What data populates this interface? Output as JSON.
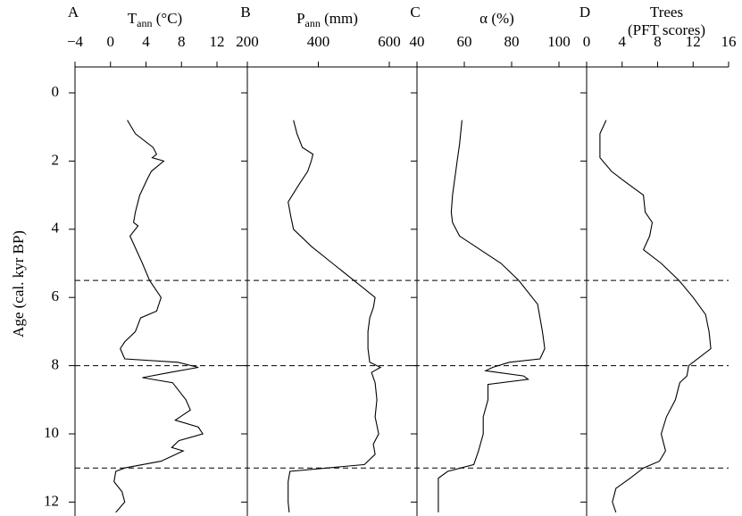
{
  "shared_axis": {
    "y_label": "Age (cal. kyr BP)",
    "ylim": [
      -0.76,
      12.4
    ],
    "y_inverted": true,
    "yticks": [
      0,
      2,
      4,
      6,
      8,
      10,
      12
    ],
    "reference_lines": [
      5.5,
      8,
      11
    ]
  },
  "chart_data": [
    {
      "type": "line",
      "panel": "A",
      "x_label": [
        "T",
        "ann",
        " (°C)"
      ],
      "x_label_sub": 1,
      "xlim": [
        -4,
        12
      ],
      "xticks": [
        {
          "value": -4,
          "label": "−4"
        },
        0,
        4,
        8,
        12
      ],
      "color": "#000000",
      "y": [
        0.8,
        1.2,
        1.6,
        1.8,
        1.9,
        2.0,
        2.3,
        2.5,
        3.0,
        3.5,
        3.8,
        3.9,
        4.2,
        5.0,
        5.5,
        6.0,
        6.4,
        6.6,
        7.0,
        7.3,
        7.5,
        7.8,
        7.9,
        8.05,
        8.2,
        8.35,
        8.5,
        9.0,
        9.3,
        9.6,
        9.8,
        10.0,
        10.2,
        10.4,
        10.5,
        10.8,
        11.0,
        11.1,
        11.4,
        11.7,
        12.0,
        12.3
      ],
      "values": [
        1.9,
        2.8,
        4.8,
        5.2,
        4.7,
        6.0,
        4.6,
        4.2,
        3.3,
        2.8,
        2.6,
        3.1,
        2.2,
        3.6,
        4.4,
        5.7,
        5.2,
        3.4,
        2.8,
        1.6,
        1.1,
        1.6,
        7.6,
        9.9,
        6.7,
        3.6,
        7.0,
        8.5,
        9.0,
        7.3,
        9.9,
        10.4,
        7.7,
        6.9,
        8.2,
        5.7,
        1.6,
        0.6,
        0.4,
        1.3,
        1.6,
        0.6
      ]
    },
    {
      "type": "line",
      "panel": "B",
      "x_label": [
        "P",
        "ann",
        " (mm)"
      ],
      "x_label_sub": 1,
      "xlim": [
        200,
        600
      ],
      "xticks": [
        200,
        400,
        600
      ],
      "color": "#000000",
      "y": [
        0.8,
        1.2,
        1.6,
        1.8,
        2.0,
        2.3,
        2.7,
        3.2,
        3.6,
        4.0,
        4.5,
        5.0,
        5.5,
        6.0,
        6.3,
        6.6,
        7.0,
        7.5,
        7.9,
        8.05,
        8.2,
        8.5,
        9.0,
        9.5,
        10.0,
        10.3,
        10.6,
        10.9,
        11.1,
        11.4,
        12.0,
        12.3
      ],
      "values": [
        330,
        340,
        355,
        385,
        380,
        370,
        345,
        315,
        322,
        330,
        380,
        440,
        500,
        560,
        555,
        545,
        540,
        540,
        545,
        575,
        550,
        560,
        565,
        560,
        570,
        555,
        560,
        530,
        320,
        315,
        315,
        318
      ]
    },
    {
      "type": "line",
      "panel": "C",
      "x_label": [
        "α (%)"
      ],
      "xlim": [
        40,
        100
      ],
      "xticks": [
        40,
        60,
        80,
        100
      ],
      "color": "#000000",
      "y": [
        0.8,
        1.5,
        2.0,
        3.0,
        3.5,
        3.8,
        4.2,
        5.0,
        5.5,
        6.2,
        6.6,
        7.0,
        7.5,
        7.8,
        7.9,
        8.05,
        8.15,
        8.3,
        8.4,
        8.55,
        9.0,
        9.5,
        10.0,
        10.5,
        10.9,
        11.1,
        11.3,
        12.3
      ],
      "values": [
        59,
        58,
        57,
        55,
        54.5,
        55,
        58,
        75.5,
        83,
        91,
        92,
        93,
        94,
        92,
        79,
        72,
        69,
        85,
        87,
        70,
        70,
        68,
        68,
        66,
        64,
        53,
        49,
        49
      ]
    },
    {
      "type": "line",
      "panel": "D",
      "x_label": [
        "Trees",
        "(PFT scores)"
      ],
      "xlim": [
        0,
        16
      ],
      "xticks": [
        0,
        4,
        8,
        12,
        16
      ],
      "color": "#000000",
      "y": [
        0.8,
        1.2,
        1.9,
        2.3,
        2.6,
        3.0,
        3.5,
        3.8,
        4.2,
        4.6,
        5.0,
        5.5,
        6.0,
        6.5,
        7.0,
        7.5,
        8.0,
        8.3,
        8.5,
        9.0,
        9.5,
        10.0,
        10.5,
        10.8,
        11.0,
        11.3,
        11.6,
        12.0,
        12.3
      ],
      "values": [
        2.2,
        1.5,
        1.5,
        2.8,
        4.3,
        6.4,
        6.6,
        7.4,
        7.1,
        6.4,
        8.4,
        10.4,
        12.0,
        13.4,
        13.8,
        14.0,
        11.5,
        11.3,
        10.5,
        10.0,
        9.0,
        8.4,
        8.9,
        8.2,
        6.4,
        4.9,
        3.3,
        2.9,
        3.3
      ]
    }
  ]
}
